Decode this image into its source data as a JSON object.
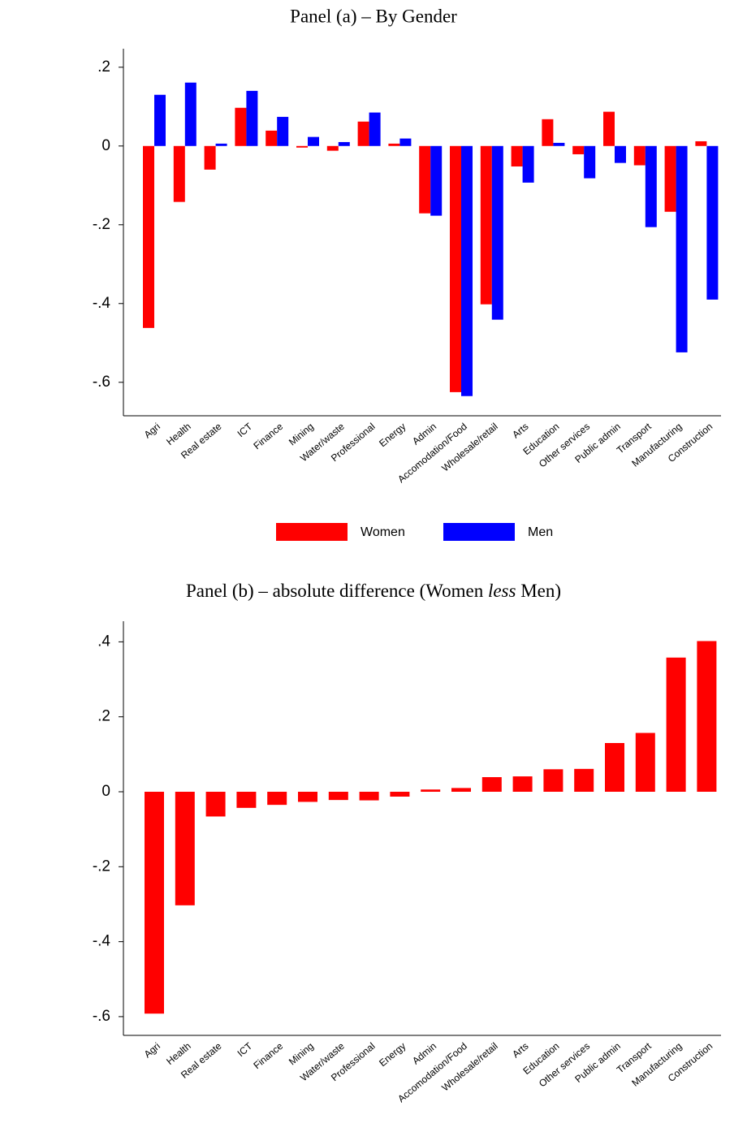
{
  "chart_data": [
    {
      "type": "bar",
      "title": "Panel (a) – By Gender",
      "categories": [
        "Agri",
        "Health",
        "Real estate",
        "ICT",
        "Finance",
        "Mining",
        "Water/waste",
        "Professional",
        "Energy",
        "Admin",
        "Accomodation/Food",
        "Wholesale/retail",
        "Arts",
        "Education",
        "Other services",
        "Public admin",
        "Transport",
        "Manufacturing",
        "Construction"
      ],
      "series": [
        {
          "name": "Women",
          "color": "#ff0000",
          "values": [
            -0.462,
            -0.142,
            -0.06,
            0.097,
            0.039,
            -0.004,
            -0.012,
            0.062,
            0.006,
            -0.171,
            -0.625,
            -0.402,
            -0.052,
            0.068,
            -0.021,
            0.087,
            -0.049,
            -0.167,
            0.012
          ]
        },
        {
          "name": "Men",
          "color": "#0000ff",
          "values": [
            0.13,
            0.161,
            0.006,
            0.14,
            0.074,
            0.023,
            0.01,
            0.085,
            0.019,
            -0.177,
            -0.635,
            -0.441,
            -0.093,
            0.008,
            -0.082,
            -0.043,
            -0.206,
            -0.524,
            -0.39
          ]
        }
      ],
      "ylim": [
        -0.685,
        0.247
      ],
      "yticks": [
        {
          "value": 0.2,
          "label": ".2"
        },
        0,
        {
          "value": -0.2,
          "label": "-.2"
        },
        {
          "value": -0.4,
          "label": "-.4"
        },
        {
          "value": -0.6,
          "label": "-.6"
        }
      ],
      "legend": "bottom"
    },
    {
      "type": "bar",
      "title": [
        "Panel (b) – absolute difference (Women ",
        "less",
        " Men)"
      ],
      "categories": [
        "Agri",
        "Health",
        "Real estate",
        "ICT",
        "Finance",
        "Mining",
        "Water/waste",
        "Professional",
        "Energy",
        "Admin",
        "Accomodation/Food",
        "Wholesale/retail",
        "Arts",
        "Education",
        "Other services",
        "Public admin",
        "Transport",
        "Manufacturing",
        "Construction"
      ],
      "values": [
        -0.592,
        -0.303,
        -0.066,
        -0.043,
        -0.035,
        -0.027,
        -0.022,
        -0.023,
        -0.013,
        0.006,
        0.01,
        0.039,
        0.041,
        0.06,
        0.061,
        0.13,
        0.157,
        0.358,
        0.402
      ],
      "color": "#ff0000",
      "ylim": [
        -0.65,
        0.455
      ],
      "yticks": [
        {
          "value": 0.4,
          "label": ".4"
        },
        {
          "value": 0.2,
          "label": ".2"
        },
        0,
        {
          "value": -0.2,
          "label": "-.2"
        },
        {
          "value": -0.4,
          "label": "-.4"
        },
        {
          "value": -0.6,
          "label": "-.6"
        }
      ]
    }
  ]
}
